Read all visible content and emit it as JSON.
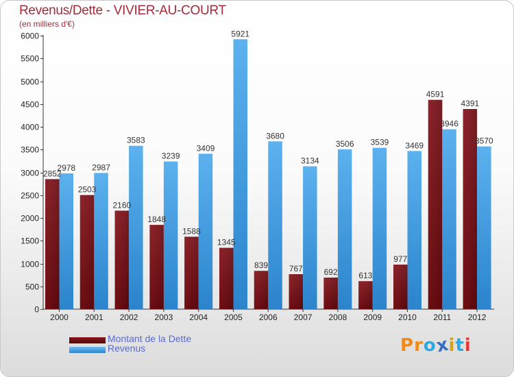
{
  "title": "Revenus/Dette - VIVIER-AU-COURT",
  "subtitle": "(en milliers d'€)",
  "legend": [
    {
      "label": "Montant de la Dette",
      "color": "#6e0e14"
    },
    {
      "label": "Revenus",
      "color": "#3f9ee3"
    }
  ],
  "logo": {
    "text": "Proxiti",
    "colors": [
      "#f08a1c",
      "#f08a1c",
      "#2ea8e0",
      "#3a6fbf",
      "#d6a21e",
      "#2ea8e0",
      "#e63a3a"
    ]
  },
  "chart_data": {
    "type": "bar",
    "title": "Revenus/Dette - VIVIER-AU-COURT",
    "ylabel": "(en milliers d'€)",
    "xlabel": "",
    "categories": [
      "2000",
      "2001",
      "2002",
      "2003",
      "2004",
      "2005",
      "2006",
      "2007",
      "2008",
      "2009",
      "2010",
      "2011",
      "2012"
    ],
    "series": [
      {
        "name": "Montant de la Dette",
        "color": "#6e0e14",
        "values": [
          2852,
          2503,
          2160,
          1848,
          1588,
          1345,
          839,
          767,
          692,
          613,
          977,
          4591,
          4391
        ]
      },
      {
        "name": "Revenus",
        "color": "#3f9ee3",
        "values": [
          2978,
          2987,
          3583,
          3239,
          3409,
          5921,
          3680,
          3134,
          3506,
          3539,
          3469,
          3946,
          3570
        ]
      }
    ],
    "ylim": [
      0,
      6000
    ],
    "yticks": [
      0,
      500,
      1000,
      1500,
      2000,
      2500,
      3000,
      3500,
      4000,
      4500,
      5000,
      5500,
      6000
    ],
    "grid": false,
    "legend_position": "bottom-left"
  }
}
